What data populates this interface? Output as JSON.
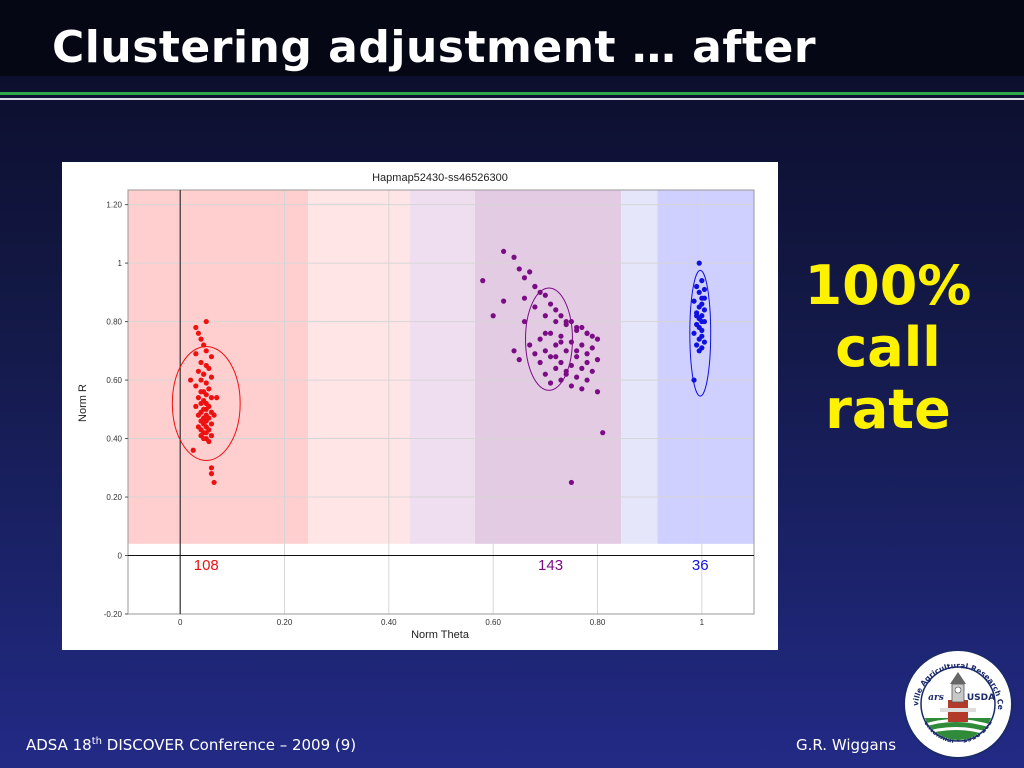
{
  "slide": {
    "title": "Clustering adjustment … after",
    "callout_lines": [
      "100%",
      "call",
      "rate"
    ],
    "footer": {
      "conference_prefix": "ADSA 18",
      "conference_sup": "th",
      "conference_suffix": " DISCOVER Conference – 2009 (9)",
      "author": "G.R. Wiggans"
    },
    "colors": {
      "callout": "#fff200",
      "title": "#ffffff",
      "rule": "#2fa84a"
    }
  },
  "seal": {
    "icon": "usda-centennial-seal-icon",
    "ring_text_top": "Beltsville Agricultural Research Center",
    "ring_text_bottom": "Centennial • 1910-2010",
    "agency": "USDA",
    "mark": "ars"
  },
  "chart_data": {
    "type": "scatter",
    "title": "Hapmap52430-ss46526300",
    "xlabel": "Norm Theta",
    "ylabel": "Norm R",
    "xlim": [
      -0.1,
      1.1
    ],
    "ylim": [
      -0.2,
      1.25
    ],
    "xticks": [
      0,
      0.2,
      0.4,
      0.6,
      0.8,
      1
    ],
    "xtick_labels": [
      "0",
      "0.20",
      "0.40",
      "0.60",
      "0.80",
      "1"
    ],
    "yticks": [
      -0.2,
      0,
      0.2,
      0.4,
      0.6,
      0.8,
      1,
      1.2
    ],
    "ytick_labels": [
      "-0.20",
      "0",
      "0.20",
      "0.40",
      "0.60",
      "0.80",
      "1",
      "1.20"
    ],
    "grid": true,
    "regions": [
      {
        "x0": -0.1,
        "x1": 0.245,
        "color": "#ffcfcf"
      },
      {
        "x0": 0.245,
        "x1": 0.44,
        "color": "#ffe5e5"
      },
      {
        "x0": 0.44,
        "x1": 0.565,
        "color": "#efdeef"
      },
      {
        "x0": 0.565,
        "x1": 0.845,
        "color": "#e4cbe4"
      },
      {
        "x0": 0.845,
        "x1": 0.915,
        "color": "#e6e6fa"
      },
      {
        "x0": 0.915,
        "x1": 1.1,
        "color": "#cfd0ff"
      }
    ],
    "series": [
      {
        "count": "108",
        "count_x": 0.05,
        "color": "#ee1111",
        "ellipse": {
          "cx": 0.05,
          "cy": 0.52,
          "rx": 0.065,
          "ry": 0.195
        },
        "x": [
          0.03,
          0.035,
          0.04,
          0.045,
          0.05,
          0.03,
          0.06,
          0.04,
          0.05,
          0.055,
          0.035,
          0.045,
          0.06,
          0.04,
          0.05,
          0.03,
          0.055,
          0.045,
          0.04,
          0.05,
          0.06,
          0.035,
          0.045,
          0.05,
          0.04,
          0.055,
          0.03,
          0.05,
          0.045,
          0.06,
          0.04,
          0.05,
          0.035,
          0.045,
          0.055,
          0.04,
          0.05,
          0.06,
          0.045,
          0.035,
          0.05,
          0.04,
          0.055,
          0.045,
          0.05,
          0.06,
          0.04,
          0.05,
          0.045,
          0.055,
          0.065,
          0.07,
          0.02,
          0.025,
          0.05,
          0.06,
          0.06,
          0.065,
          0.045
        ],
        "y": [
          0.78,
          0.76,
          0.74,
          0.72,
          0.7,
          0.69,
          0.68,
          0.66,
          0.65,
          0.64,
          0.63,
          0.62,
          0.61,
          0.6,
          0.59,
          0.58,
          0.57,
          0.56,
          0.56,
          0.55,
          0.54,
          0.54,
          0.53,
          0.52,
          0.52,
          0.51,
          0.51,
          0.5,
          0.5,
          0.49,
          0.49,
          0.48,
          0.48,
          0.47,
          0.47,
          0.46,
          0.46,
          0.45,
          0.45,
          0.44,
          0.44,
          0.43,
          0.43,
          0.42,
          0.42,
          0.41,
          0.41,
          0.4,
          0.4,
          0.39,
          0.48,
          0.54,
          0.6,
          0.36,
          0.8,
          0.3,
          0.28,
          0.25,
          0.62
        ]
      },
      {
        "count": "143",
        "count_x": 0.71,
        "color": "#7a0c84",
        "ellipse": {
          "cx": 0.707,
          "cy": 0.74,
          "rx": 0.045,
          "ry": 0.175
        },
        "x": [
          0.62,
          0.64,
          0.65,
          0.66,
          0.67,
          0.68,
          0.69,
          0.7,
          0.71,
          0.72,
          0.73,
          0.74,
          0.75,
          0.76,
          0.77,
          0.78,
          0.79,
          0.8,
          0.66,
          0.68,
          0.7,
          0.72,
          0.74,
          0.76,
          0.78,
          0.67,
          0.69,
          0.71,
          0.73,
          0.75,
          0.77,
          0.79,
          0.68,
          0.7,
          0.72,
          0.74,
          0.76,
          0.78,
          0.8,
          0.69,
          0.71,
          0.73,
          0.75,
          0.77,
          0.79,
          0.7,
          0.72,
          0.74,
          0.76,
          0.78,
          0.71,
          0.73,
          0.75,
          0.77,
          0.58,
          0.6,
          0.62,
          0.65,
          0.64,
          0.81,
          0.75,
          0.7,
          0.68,
          0.73,
          0.76,
          0.78,
          0.74,
          0.72,
          0.8,
          0.66
        ],
        "y": [
          1.04,
          1.02,
          0.98,
          0.95,
          0.97,
          0.92,
          0.9,
          0.89,
          0.86,
          0.84,
          0.82,
          0.8,
          0.8,
          0.78,
          0.78,
          0.76,
          0.75,
          0.74,
          0.88,
          0.85,
          0.82,
          0.8,
          0.79,
          0.77,
          0.76,
          0.72,
          0.74,
          0.76,
          0.75,
          0.73,
          0.72,
          0.71,
          0.69,
          0.7,
          0.72,
          0.7,
          0.68,
          0.69,
          0.67,
          0.66,
          0.68,
          0.66,
          0.65,
          0.64,
          0.63,
          0.62,
          0.64,
          0.63,
          0.61,
          0.6,
          0.59,
          0.6,
          0.58,
          0.57,
          0.94,
          0.82,
          0.87,
          0.67,
          0.7,
          0.42,
          0.25,
          0.76,
          0.92,
          0.73,
          0.7,
          0.66,
          0.62,
          0.68,
          0.56,
          0.8
        ]
      },
      {
        "count": "36",
        "count_x": 0.997,
        "color": "#1010e0",
        "ellipse": {
          "cx": 0.997,
          "cy": 0.76,
          "rx": 0.02,
          "ry": 0.215
        },
        "x": [
          0.995,
          1.0,
          0.99,
          1.005,
          0.995,
          1.0,
          0.985,
          1.0,
          0.995,
          1.005,
          0.99,
          1.0,
          0.995,
          1.0,
          1.005,
          0.99,
          0.995,
          1.0,
          0.985,
          1.0,
          0.995,
          1.005,
          0.99,
          1.0,
          0.995,
          0.985,
          0.99,
          1.005
        ],
        "y": [
          1.0,
          0.94,
          0.92,
          0.91,
          0.9,
          0.88,
          0.87,
          0.86,
          0.85,
          0.84,
          0.83,
          0.82,
          0.81,
          0.8,
          0.8,
          0.79,
          0.78,
          0.77,
          0.76,
          0.75,
          0.74,
          0.73,
          0.72,
          0.71,
          0.7,
          0.6,
          0.82,
          0.88
        ]
      }
    ]
  }
}
